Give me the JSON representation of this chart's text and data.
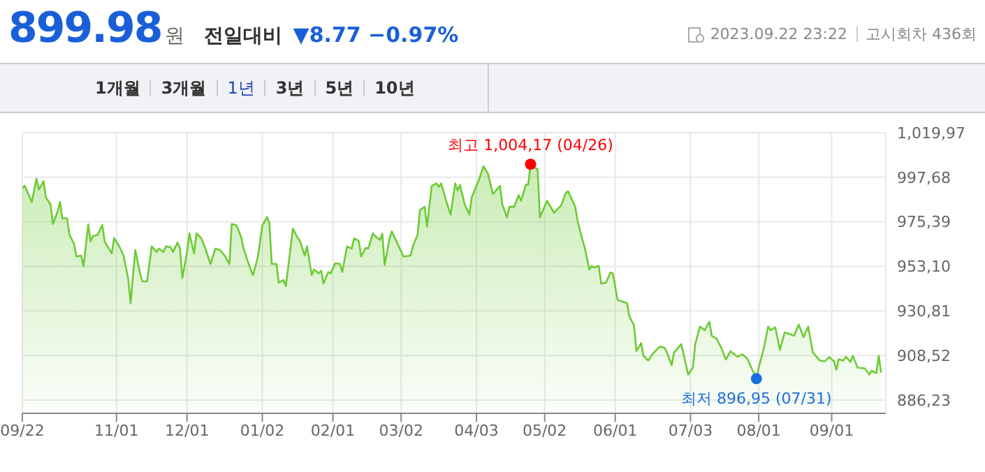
{
  "chart_data": {
    "type": "area",
    "title": "899.98원",
    "subtitle": "전일대비 ▼8.77 −0.97%",
    "annotations": [
      "2023.09.22 23:22",
      "고시회차 436회",
      "1개월",
      "3개월",
      "1년",
      "3년",
      "5년",
      "10년",
      {
        "text": "최고 1,004,17 (04/26)",
        "x": "2023-04-26",
        "y": 1004.17
      },
      {
        "text": "최저 896,95 (07/31)",
        "x": "2023-07-31",
        "y": 896.95
      }
    ],
    "color": "#6ccb35",
    "x": [
      "2022-09-22",
      "2022-09-23",
      "2022-09-26",
      "2022-09-28",
      "2022-09-29",
      "2022-10-01",
      "2022-10-02",
      "2022-10-04",
      "2022-10-05",
      "2022-10-07",
      "2022-10-08",
      "2022-10-09",
      "2022-10-11",
      "2022-10-12",
      "2022-10-14",
      "2022-10-15",
      "2022-10-17",
      "2022-10-18",
      "2022-10-20",
      "2022-10-21",
      "2022-10-22",
      "2022-10-24",
      "2022-10-26",
      "2022-10-27",
      "2022-10-30",
      "2022-10-31",
      "2022-11-02",
      "2022-11-04",
      "2022-11-06",
      "2022-11-07",
      "2022-11-09",
      "2022-11-11",
      "2022-11-12",
      "2022-11-14",
      "2022-11-16",
      "2022-11-18",
      "2022-11-19",
      "2022-11-21",
      "2022-11-22",
      "2022-11-24",
      "2022-11-25",
      "2022-11-27",
      "2022-11-28",
      "2022-11-29",
      "2022-12-01",
      "2022-12-02",
      "2022-12-04",
      "2022-12-05",
      "2022-12-07",
      "2022-12-09",
      "2022-12-11",
      "2022-12-13",
      "2022-12-15",
      "2022-12-17",
      "2022-12-19",
      "2022-12-20",
      "2022-12-22",
      "2022-12-24",
      "2022-12-25",
      "2022-12-27",
      "2022-12-29",
      "2022-12-31",
      "2023-01-02",
      "2023-01-04",
      "2023-01-05",
      "2023-01-06",
      "2023-01-08",
      "2023-01-09",
      "2023-01-11",
      "2023-01-12",
      "2023-01-15",
      "2023-01-17",
      "2023-01-18",
      "2023-01-20",
      "2023-01-21",
      "2023-01-23",
      "2023-01-24",
      "2023-01-26",
      "2023-01-27",
      "2023-01-28",
      "2023-01-30",
      "2023-01-31",
      "2023-02-02",
      "2023-02-04",
      "2023-02-05",
      "2023-02-07",
      "2023-02-09",
      "2023-02-10",
      "2023-02-12",
      "2023-02-13",
      "2023-02-15",
      "2023-02-16",
      "2023-02-18",
      "2023-02-19",
      "2023-02-21",
      "2023-02-22",
      "2023-02-23",
      "2023-02-25",
      "2023-02-26",
      "2023-03-01",
      "2023-03-03",
      "2023-03-06",
      "2023-03-07",
      "2023-03-09",
      "2023-03-10",
      "2023-03-12",
      "2023-03-13",
      "2023-03-15",
      "2023-03-17",
      "2023-03-18",
      "2023-03-19",
      "2023-03-21",
      "2023-03-23",
      "2023-03-25",
      "2023-03-26",
      "2023-03-27",
      "2023-03-29",
      "2023-03-31",
      "2023-04-01",
      "2023-04-04",
      "2023-04-06",
      "2023-04-08",
      "2023-04-10",
      "2023-04-13",
      "2023-04-14",
      "2023-04-16",
      "2023-04-17",
      "2023-04-19",
      "2023-04-21",
      "2023-04-22",
      "2023-04-24",
      "2023-04-25",
      "2023-04-26",
      "2023-04-29",
      "2023-04-30",
      "2023-05-03",
      "2023-05-06",
      "2023-05-09",
      "2023-05-11",
      "2023-05-12",
      "2023-05-15",
      "2023-05-16",
      "2023-05-18",
      "2023-05-19",
      "2023-05-21",
      "2023-05-22",
      "2023-05-23",
      "2023-05-25",
      "2023-05-26",
      "2023-05-28",
      "2023-05-30",
      "2023-05-31",
      "2023-06-02",
      "2023-06-06",
      "2023-06-07",
      "2023-06-09",
      "2023-06-10",
      "2023-06-12",
      "2023-06-13",
      "2023-06-15",
      "2023-06-17",
      "2023-06-20",
      "2023-06-22",
      "2023-06-23",
      "2023-06-25",
      "2023-06-26",
      "2023-06-29",
      "2023-06-30",
      "2023-07-02",
      "2023-07-04",
      "2023-07-05",
      "2023-07-07",
      "2023-07-09",
      "2023-07-11",
      "2023-07-12",
      "2023-07-14",
      "2023-07-16",
      "2023-07-18",
      "2023-07-20",
      "2023-07-23",
      "2023-07-25",
      "2023-07-27",
      "2023-07-31",
      "2023-08-01",
      "2023-08-03",
      "2023-08-05",
      "2023-08-06",
      "2023-08-08",
      "2023-08-10",
      "2023-08-12",
      "2023-08-14",
      "2023-08-16",
      "2023-08-18",
      "2023-08-20",
      "2023-08-22",
      "2023-08-24",
      "2023-08-27",
      "2023-08-29",
      "2023-08-31",
      "2023-09-02",
      "2023-09-03",
      "2023-09-04",
      "2023-09-06",
      "2023-09-07",
      "2023-09-09",
      "2023-09-10",
      "2023-09-12",
      "2023-09-15",
      "2023-09-17",
      "2023-09-18",
      "2023-09-20",
      "2023-09-21",
      "2023-09-22"
    ],
    "values": [
      992.2,
      993.4,
      985.3,
      996.9,
      991.5,
      995.7,
      987.6,
      984.1,
      974.3,
      980.6,
      985.3,
      977.1,
      977.1,
      968.9,
      964.3,
      958.0,
      958.5,
      953.1,
      974.1,
      965.5,
      968.2,
      968.9,
      973.8,
      965.5,
      959.6,
      967.3,
      963.6,
      958.5,
      946.8,
      934.7,
      961.3,
      949.6,
      945.6,
      945.6,
      963.1,
      960.3,
      962.0,
      960.3,
      963.1,
      962.7,
      960.3,
      965.0,
      962.0,
      947.3,
      960.3,
      969.6,
      959.6,
      969.6,
      967.3,
      961.3,
      954.3,
      962.0,
      961.3,
      958.5,
      954.3,
      974.3,
      973.6,
      967.8,
      962.0,
      955.0,
      948.7,
      957.3,
      973.6,
      977.8,
      974.8,
      954.3,
      954.3,
      944.9,
      946.3,
      943.3,
      972.0,
      967.3,
      965.9,
      958.5,
      963.1,
      948.7,
      951.5,
      949.6,
      951.0,
      944.5,
      950.3,
      949.6,
      954.7,
      954.3,
      950.3,
      963.1,
      962.0,
      967.1,
      965.9,
      958.0,
      962.4,
      962.0,
      969.6,
      968.2,
      966.4,
      969.4,
      953.8,
      966.6,
      970.6,
      963.1,
      958.0,
      958.5,
      963.1,
      968.9,
      981.3,
      982.9,
      972.9,
      993.4,
      994.6,
      992.9,
      994.6,
      986.4,
      979.0,
      994.6,
      991.1,
      993.9,
      984.1,
      979.0,
      987.6,
      996.2,
      1003.2,
      999.2,
      989.2,
      993.4,
      984.1,
      977.6,
      982.9,
      982.9,
      988.7,
      985.9,
      993.9,
      993.9,
      1004.17,
      1001.6,
      977.6,
      985.9,
      979.9,
      983.6,
      989.9,
      990.6,
      982.9,
      975.9,
      966.6,
      962.7,
      951.5,
      953.3,
      952.6,
      953.3,
      944.5,
      944.9,
      950.1,
      949.6,
      936.3,
      934.7,
      928.2,
      923.5,
      910.7,
      914.7,
      908.4,
      906.0,
      909.5,
      913.0,
      912.3,
      910.0,
      903.7,
      910.0,
      914.2,
      909.5,
      899.0,
      902.5,
      914.2,
      923.0,
      921.2,
      925.4,
      918.4,
      917.0,
      912.6,
      906.5,
      910.7,
      907.9,
      909.1,
      907.2,
      896.95,
      902.5,
      911.4,
      923.0,
      921.2,
      922.6,
      911.4,
      920.0,
      919.3,
      918.4,
      924.0,
      917.7,
      923.0,
      910.0,
      906.0,
      905.6,
      907.7,
      905.6,
      901.4,
      906.7,
      906.0,
      907.9,
      905.3,
      908.4,
      902.5,
      902.1,
      899.0,
      900.9,
      899.7,
      908.4,
      899.98
    ],
    "xlim": [
      "2022-09-22",
      "2023-09-24"
    ],
    "xticks": [
      {
        "value": "2022-09-22",
        "label": "09/22"
      },
      {
        "value": "2022-11-01",
        "label": "11/01"
      },
      {
        "value": "2022-12-01",
        "label": "12/01"
      },
      {
        "value": "2023-01-02",
        "label": "01/02"
      },
      {
        "value": "2023-02-01",
        "label": "02/01"
      },
      {
        "value": "2023-03-02",
        "label": "03/02"
      },
      {
        "value": "2023-04-03",
        "label": "04/03"
      },
      {
        "value": "2023-05-02",
        "label": "05/02"
      },
      {
        "value": "2023-06-01",
        "label": "06/01"
      },
      {
        "value": "2023-07-03",
        "label": "07/03"
      },
      {
        "value": "2023-08-01",
        "label": "08/01"
      },
      {
        "value": "2023-09-01",
        "label": "09/01"
      }
    ],
    "ylim": [
      879.6,
      1019.97
    ],
    "yticks": [
      {
        "value": 886.23,
        "label": "886,23"
      },
      {
        "value": 908.52,
        "label": "908,52"
      },
      {
        "value": 930.81,
        "label": "930,81"
      },
      {
        "value": 953.1,
        "label": "953,10"
      },
      {
        "value": 975.39,
        "label": "975,39"
      },
      {
        "value": 997.68,
        "label": "997,68"
      },
      {
        "value": 1019.97,
        "label": "1,019,97"
      }
    ],
    "grid": true,
    "marker": "none"
  }
}
